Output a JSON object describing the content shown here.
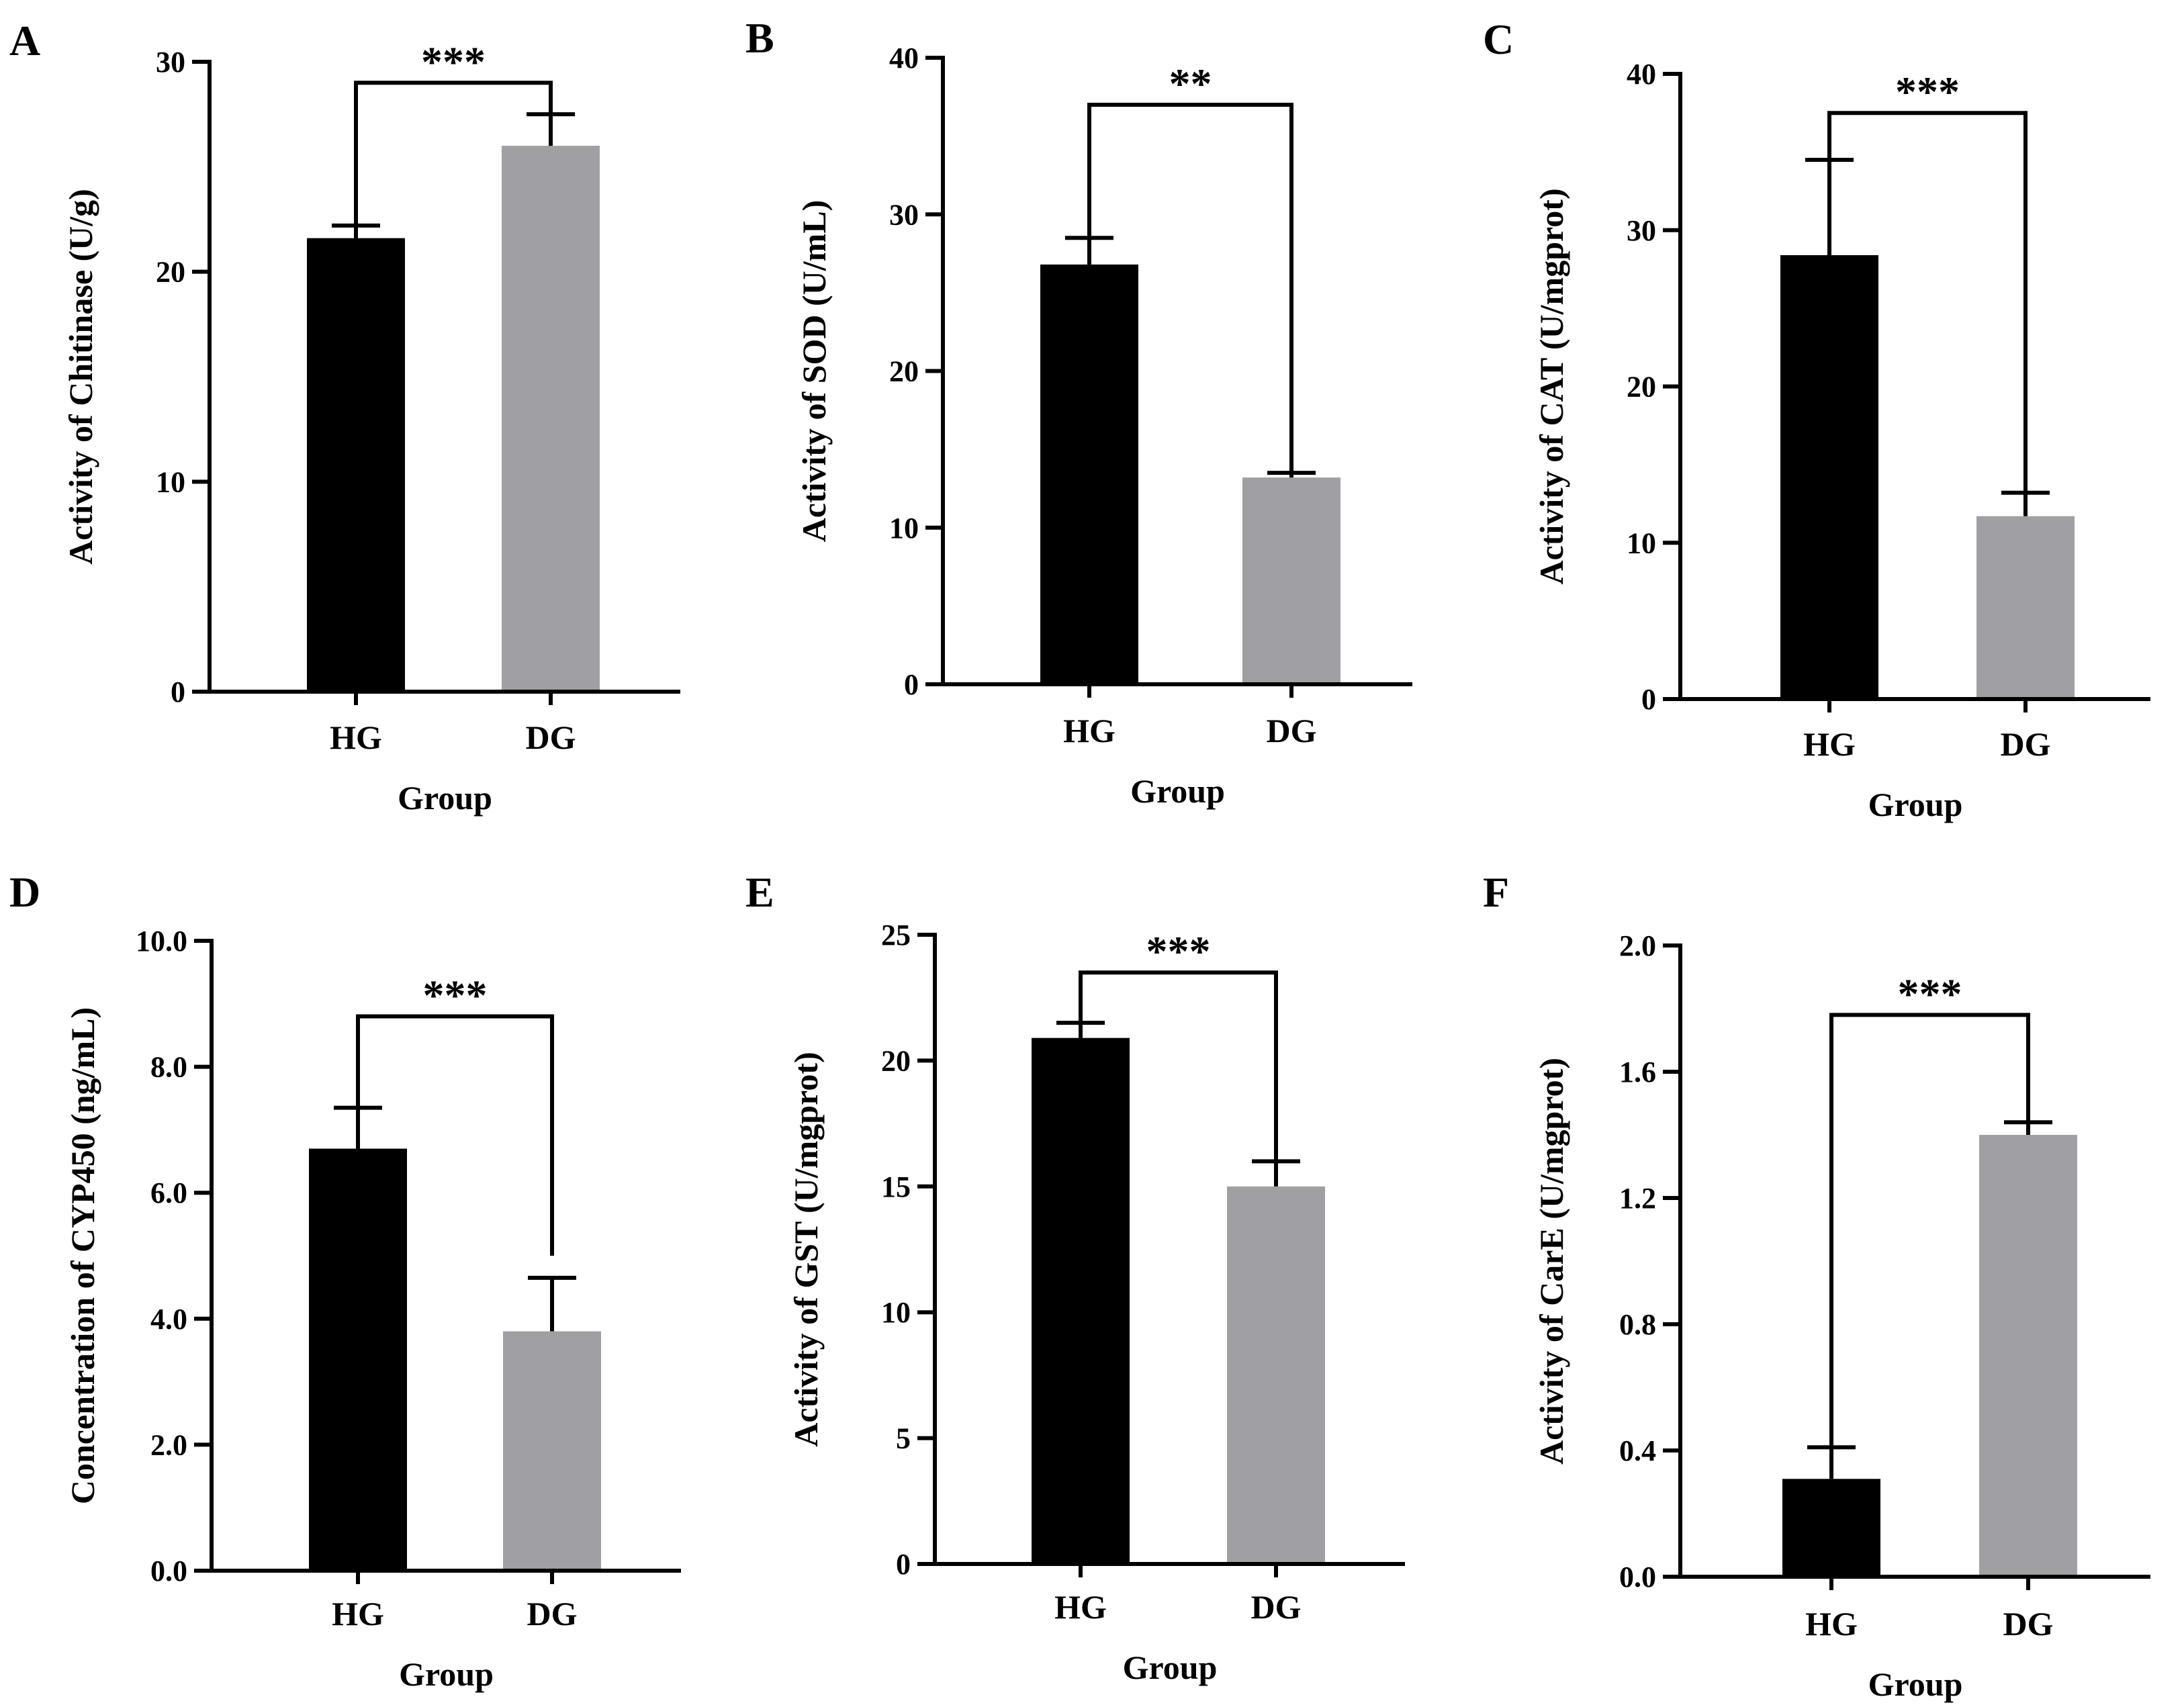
{
  "figure": {
    "colors": {
      "HG": "#000000",
      "DG": "#a0a0a4",
      "axis": "#000000"
    }
  },
  "chart_data": [
    {
      "panel": "A",
      "type": "bar",
      "categories": [
        "HG",
        "DG"
      ],
      "values": [
        21.6,
        26.0
      ],
      "errors": [
        0.6,
        1.5
      ],
      "ylim": [
        0,
        30
      ],
      "yticks": [
        0,
        10,
        20,
        30
      ],
      "ytick_labels": [
        "0",
        "10",
        "20",
        "30"
      ],
      "xlabel": "Group",
      "ylabel": "Activity of Chitinase (U/g)",
      "significance": "***",
      "bracket_ends": [
        22.2,
        27.5
      ],
      "bracket_top": 29.0
    },
    {
      "panel": "B",
      "type": "bar",
      "categories": [
        "HG",
        "DG"
      ],
      "values": [
        26.8,
        13.2
      ],
      "errors": [
        1.7,
        0.3
      ],
      "ylim": [
        0,
        40
      ],
      "yticks": [
        0,
        10,
        20,
        30,
        40
      ],
      "ytick_labels": [
        "0",
        "10",
        "20",
        "30",
        "40"
      ],
      "xlabel": "Group",
      "ylabel": "Activity of SOD (U/mL)",
      "significance": "**",
      "bracket_ends": [
        28.5,
        13.5
      ],
      "bracket_top": 37.0
    },
    {
      "panel": "C",
      "type": "bar",
      "categories": [
        "HG",
        "DG"
      ],
      "values": [
        28.4,
        11.7
      ],
      "errors": [
        6.1,
        1.5
      ],
      "ylim": [
        0,
        40
      ],
      "yticks": [
        0,
        10,
        20,
        30,
        40
      ],
      "ytick_labels": [
        "0",
        "10",
        "20",
        "30",
        "40"
      ],
      "xlabel": "Group",
      "ylabel": "Activity of CAT (U/mgprot)",
      "significance": "***",
      "bracket_ends": [
        34.5,
        13.2
      ],
      "bracket_top": 37.5
    },
    {
      "panel": "D",
      "type": "bar",
      "categories": [
        "HG",
        "DG"
      ],
      "values": [
        6.7,
        3.8
      ],
      "errors": [
        0.65,
        0.85
      ],
      "ylim": [
        0,
        10
      ],
      "yticks": [
        0,
        2,
        4,
        6,
        8,
        10
      ],
      "ytick_labels": [
        "0.0",
        "2.0",
        "4.0",
        "6.0",
        "8.0",
        "10.0"
      ],
      "xlabel": "Group",
      "ylabel": "Concentration of  CYP450 (ng/mL)",
      "significance": "***",
      "bracket_ends": [
        7.35,
        5.0
      ],
      "bracket_top": 8.8
    },
    {
      "panel": "E",
      "type": "bar",
      "categories": [
        "HG",
        "DG"
      ],
      "values": [
        20.9,
        15.0
      ],
      "errors": [
        0.6,
        1.0
      ],
      "ylim": [
        0,
        25
      ],
      "yticks": [
        0,
        5,
        10,
        15,
        20,
        25
      ],
      "ytick_labels": [
        "0",
        "5",
        "10",
        "15",
        "20",
        "25"
      ],
      "xlabel": "Group",
      "ylabel": "Activity of GST (U/mgprot)",
      "significance": "***",
      "bracket_ends": [
        21.5,
        16.0
      ],
      "bracket_top": 23.5
    },
    {
      "panel": "F",
      "type": "bar",
      "categories": [
        "HG",
        "DG"
      ],
      "values": [
        0.31,
        1.4
      ],
      "errors": [
        0.1,
        0.04
      ],
      "ylim": [
        0,
        2.0
      ],
      "yticks": [
        0,
        0.4,
        0.8,
        1.2,
        1.6,
        2.0
      ],
      "ytick_labels": [
        "0.0",
        "0.4",
        "0.8",
        "1.2",
        "1.6",
        "2.0"
      ],
      "xlabel": "Group",
      "ylabel": "Activity of CarE (U/mgprot)",
      "significance": "***",
      "bracket_ends": [
        0.41,
        1.44
      ],
      "bracket_top": 1.78
    }
  ]
}
